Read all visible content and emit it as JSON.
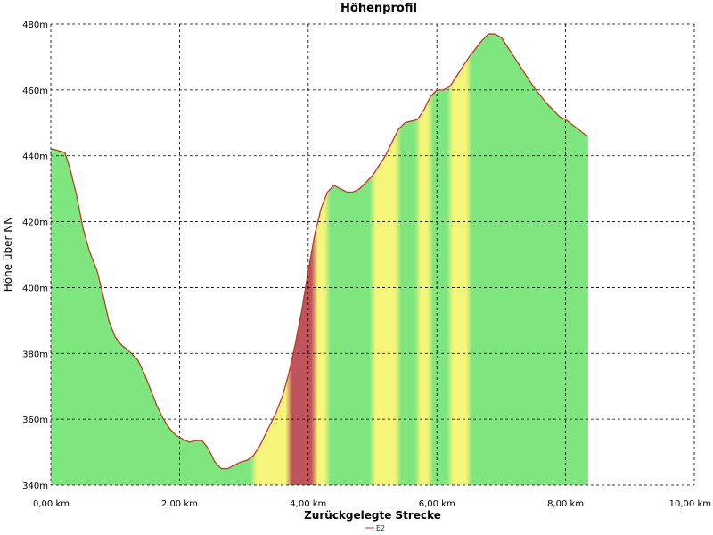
{
  "chart_data": {
    "type": "area",
    "title": "Höhenprofil",
    "xlabel": "Zurückgelegte Strecke",
    "ylabel": "Höhe über NN",
    "xlim": [
      0,
      10
    ],
    "ylim": [
      340,
      480
    ],
    "x_ticks": [
      {
        "value": 0,
        "label": "0,00 km"
      },
      {
        "value": 2,
        "label": "2,00 km"
      },
      {
        "value": 4,
        "label": "4,00 km"
      },
      {
        "value": 6,
        "label": "6,00 km"
      },
      {
        "value": 8,
        "label": "8,00 km"
      },
      {
        "value": 10,
        "label": "10,00 km"
      }
    ],
    "y_ticks": [
      {
        "value": 340,
        "label": "340m"
      },
      {
        "value": 360,
        "label": "360m"
      },
      {
        "value": 380,
        "label": "380m"
      },
      {
        "value": 400,
        "label": "400m"
      },
      {
        "value": 420,
        "label": "420m"
      },
      {
        "value": 440,
        "label": "440m"
      },
      {
        "value": 460,
        "label": "460m"
      },
      {
        "value": 480,
        "label": "480m"
      }
    ],
    "grid": true,
    "legend_position": "bottom",
    "series": [
      {
        "name": "E2",
        "line_color": "#c0392b",
        "x": [
          0,
          0.05,
          0.12,
          0.22,
          0.3,
          0.4,
          0.5,
          0.6,
          0.72,
          0.82,
          0.9,
          1.0,
          1.1,
          1.2,
          1.35,
          1.45,
          1.55,
          1.65,
          1.75,
          1.85,
          1.95,
          2.05,
          2.15,
          2.25,
          2.35,
          2.45,
          2.55,
          2.65,
          2.75,
          2.85,
          2.95,
          3.05,
          3.15,
          3.25,
          3.35,
          3.5,
          3.6,
          3.7,
          3.8,
          3.9,
          4.0,
          4.1,
          4.2,
          4.3,
          4.4,
          4.5,
          4.6,
          4.7,
          4.8,
          4.9,
          5.0,
          5.1,
          5.2,
          5.3,
          5.4,
          5.5,
          5.6,
          5.7,
          5.8,
          5.9,
          6.0,
          6.1,
          6.2,
          6.3,
          6.4,
          6.5,
          6.6,
          6.7,
          6.8,
          6.9,
          7.0,
          7.1,
          7.2,
          7.3,
          7.4,
          7.5,
          7.6,
          7.7,
          7.8,
          7.9,
          8.0,
          8.1,
          8.2,
          8.3,
          8.35
        ],
        "values": [
          442,
          442,
          441.5,
          441,
          436,
          428,
          418,
          411,
          405,
          397,
          390,
          385,
          382.5,
          381,
          378,
          374,
          369,
          364,
          360,
          357,
          355,
          354,
          353,
          353.5,
          353.5,
          351,
          347,
          345,
          345,
          346,
          347,
          347.5,
          349,
          352,
          356,
          362,
          367,
          374,
          383,
          393,
          405,
          416,
          424,
          429,
          431,
          430,
          429,
          429,
          430,
          432,
          434,
          437,
          440,
          444,
          448,
          450,
          450.5,
          451,
          454,
          458,
          460,
          460,
          461,
          464,
          467,
          470,
          472.5,
          475,
          477,
          477,
          476,
          473,
          470,
          467,
          464,
          461,
          458.5,
          456,
          454,
          452,
          451,
          449.5,
          448,
          446.5,
          446
        ]
      }
    ],
    "gradient_colors": {
      "flat": "#7fe57f",
      "moderate": "#f5f57a",
      "steep": "#c0545c"
    }
  }
}
